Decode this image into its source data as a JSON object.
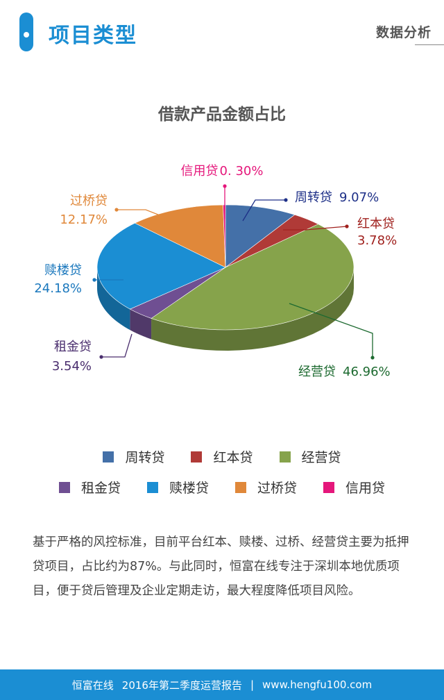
{
  "header": {
    "title": "项目类型",
    "section": "数据分析"
  },
  "chart_data": {
    "type": "pie",
    "title": "借款产品金额占比",
    "slices": [
      {
        "name": "周转贷",
        "value": 9.07,
        "label": "9.07%",
        "color": "#4470a8"
      },
      {
        "name": "红本贷",
        "value": 3.78,
        "label": "3.78%",
        "color": "#b03a37"
      },
      {
        "name": "经营贷",
        "value": 46.96,
        "label": "46.96%",
        "color": "#86a34b"
      },
      {
        "name": "租金贷",
        "value": 3.54,
        "label": "3.54%",
        "color": "#6f4f92"
      },
      {
        "name": "赎楼贷",
        "value": 24.18,
        "label": "24.18%",
        "color": "#1b8ed3"
      },
      {
        "name": "过桥贷",
        "value": 12.17,
        "label": "12.17%",
        "color": "#e0883a"
      },
      {
        "name": "信用贷",
        "value": 0.3,
        "label": "0. 30%",
        "color": "#e5177b"
      }
    ],
    "label_colors": [
      "#1d2f87",
      "#a0211e",
      "#1d6a30",
      "#4a2e6e",
      "#1b78bd",
      "#e0883a",
      "#e5177b"
    ],
    "legend": [
      "周转贷",
      "红本贷",
      "经营贷",
      "租金贷",
      "赎楼贷",
      "过桥贷",
      "信用贷"
    ]
  },
  "description": "基于严格的风控标准，目前平台红本、赎楼、过桥、经营贷主要为抵押贷项目，占比约为87%。与此同时，恒富在线专注于深圳本地优质项目，便于贷后管理及企业定期走访，最大程度降低项目风险。",
  "footer": {
    "company": "恒富在线",
    "report": "2016年第二季度运营报告",
    "separator": "|",
    "url": "www.hengfu100.com"
  }
}
